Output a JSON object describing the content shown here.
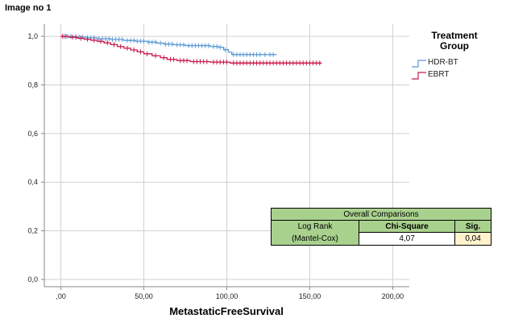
{
  "caption": "Image no 1",
  "legend": {
    "title_line1": "Treatment",
    "title_line2": "Group",
    "items": [
      {
        "label": "HDR-BT",
        "color": "#5b9bd5"
      },
      {
        "label": "EBRT",
        "color": "#c8194b"
      }
    ]
  },
  "stats_table": {
    "header": "Overall Comparisons",
    "test_line1": "Log Rank",
    "test_line2": "(Mantel-Cox)",
    "col_chisq": "Chi-Square",
    "col_sig": "Sig.",
    "chisq_value": "4,07",
    "sig_value": "0,04"
  },
  "chart_data": {
    "type": "line",
    "title": "",
    "xlabel": "MetastaticFreeSurvival",
    "ylabel": "",
    "xlim": [
      -10,
      210
    ],
    "ylim": [
      -0.03,
      1.05
    ],
    "x_ticks": [
      0,
      50,
      100,
      150,
      200
    ],
    "x_tick_labels": [
      ",00",
      "50,00",
      "100,00",
      "150,00",
      "200,00"
    ],
    "y_ticks": [
      0,
      0.2,
      0.4,
      0.6,
      0.8,
      1.0
    ],
    "y_tick_labels": [
      "0,0",
      "0,2",
      "0,4",
      "0,6",
      "0,8",
      "1,0"
    ],
    "grid": true,
    "series": [
      {
        "name": "HDR-BT",
        "color": "#5b9bd5",
        "steps": [
          [
            0,
            1.0
          ],
          [
            8,
            0.997
          ],
          [
            15,
            0.994
          ],
          [
            22,
            0.99
          ],
          [
            30,
            0.987
          ],
          [
            38,
            0.983
          ],
          [
            45,
            0.98
          ],
          [
            52,
            0.976
          ],
          [
            58,
            0.972
          ],
          [
            62,
            0.968
          ],
          [
            68,
            0.965
          ],
          [
            75,
            0.962
          ],
          [
            90,
            0.958
          ],
          [
            95,
            0.955
          ],
          [
            98,
            0.945
          ],
          [
            101,
            0.935
          ],
          [
            103,
            0.925
          ],
          [
            125,
            0.925
          ],
          [
            130,
            0.925
          ]
        ],
        "censor_x": [
          2,
          4,
          6,
          9,
          11,
          13,
          16,
          18,
          20,
          23,
          25,
          27,
          29,
          31,
          33,
          35,
          37,
          40,
          42,
          44,
          46,
          48,
          50,
          53,
          55,
          57,
          60,
          63,
          65,
          67,
          70,
          72,
          74,
          77,
          79,
          81,
          83,
          85,
          87,
          89,
          92,
          94,
          96,
          99,
          104,
          106,
          108,
          110,
          112,
          114,
          116,
          118,
          120,
          123,
          126,
          128
        ]
      },
      {
        "name": "EBRT",
        "color": "#c8194b",
        "steps": [
          [
            0,
            1.0
          ],
          [
            5,
            0.996
          ],
          [
            10,
            0.992
          ],
          [
            14,
            0.988
          ],
          [
            18,
            0.984
          ],
          [
            22,
            0.979
          ],
          [
            26,
            0.973
          ],
          [
            30,
            0.966
          ],
          [
            34,
            0.958
          ],
          [
            38,
            0.951
          ],
          [
            42,
            0.944
          ],
          [
            46,
            0.936
          ],
          [
            50,
            0.928
          ],
          [
            55,
            0.92
          ],
          [
            60,
            0.912
          ],
          [
            64,
            0.905
          ],
          [
            70,
            0.9
          ],
          [
            78,
            0.896
          ],
          [
            90,
            0.894
          ],
          [
            102,
            0.89
          ],
          [
            150,
            0.89
          ],
          [
            157,
            0.89
          ]
        ],
        "censor_x": [
          1,
          3,
          7,
          9,
          12,
          16,
          20,
          24,
          28,
          32,
          36,
          40,
          44,
          48,
          52,
          57,
          62,
          66,
          68,
          72,
          74,
          76,
          80,
          82,
          84,
          86,
          88,
          92,
          94,
          96,
          98,
          100,
          104,
          106,
          108,
          110,
          112,
          114,
          116,
          118,
          120,
          122,
          124,
          126,
          128,
          130,
          132,
          134,
          136,
          138,
          140,
          142,
          144,
          146,
          148,
          150,
          152,
          154,
          156
        ]
      }
    ]
  }
}
